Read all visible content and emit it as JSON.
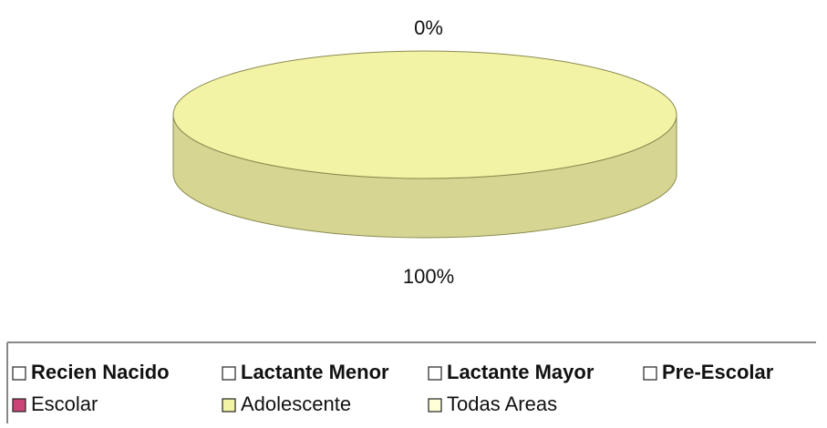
{
  "chart_data": {
    "type": "pie",
    "categories": [
      "Recien Nacido",
      "Lactante Menor",
      "Lactante Mayor",
      "Pre-Escolar",
      "Escolar",
      "Adolescente",
      "Todas Areas"
    ],
    "values": [
      null,
      null,
      null,
      null,
      0,
      100,
      null
    ],
    "value_labels": [
      null,
      null,
      null,
      null,
      "0%",
      "100%",
      null
    ],
    "colors": [
      "#ffffff",
      "#ffffff",
      "#ffffff",
      "#ffffff",
      "#cc4477",
      "#f3f3a6",
      "#ffffd8"
    ]
  }
}
